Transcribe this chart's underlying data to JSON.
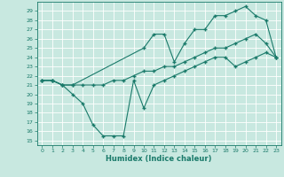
{
  "xlabel": "Humidex (Indice chaleur)",
  "bg_color": "#c8e8e0",
  "grid_color": "#ffffff",
  "line_color": "#1a7a6a",
  "xlim": [
    -0.5,
    23.5
  ],
  "ylim": [
    14.5,
    30.0
  ],
  "xticks": [
    0,
    1,
    2,
    3,
    4,
    5,
    6,
    7,
    8,
    9,
    10,
    11,
    12,
    13,
    14,
    15,
    16,
    17,
    18,
    19,
    20,
    21,
    22,
    23
  ],
  "yticks": [
    15,
    16,
    17,
    18,
    19,
    20,
    21,
    22,
    23,
    24,
    25,
    26,
    27,
    28,
    29
  ],
  "line_min_x": [
    0,
    1,
    2,
    3,
    4,
    5,
    6,
    7,
    8,
    9,
    10,
    11,
    12,
    13,
    14,
    15,
    16,
    17,
    18,
    19,
    20,
    21,
    22,
    23
  ],
  "line_min_y": [
    21.5,
    21.5,
    21.0,
    20.0,
    19.0,
    16.7,
    15.5,
    15.5,
    15.5,
    21.5,
    18.5,
    21.0,
    21.5,
    22.0,
    22.5,
    23.0,
    23.5,
    24.0,
    24.0,
    23.0,
    23.5,
    24.0,
    24.5,
    24.0
  ],
  "line_max_x": [
    0,
    1,
    2,
    3,
    10,
    11,
    12,
    13,
    14,
    15,
    16,
    17,
    18,
    19,
    20,
    21,
    22,
    23
  ],
  "line_max_y": [
    21.5,
    21.5,
    21.0,
    21.0,
    25.0,
    26.5,
    26.5,
    23.5,
    25.5,
    27.0,
    27.0,
    28.5,
    28.5,
    29.0,
    29.5,
    28.5,
    28.0,
    24.0
  ],
  "line_avg_x": [
    0,
    1,
    2,
    3,
    4,
    5,
    6,
    7,
    8,
    9,
    10,
    11,
    12,
    13,
    14,
    15,
    16,
    17,
    18,
    19,
    20,
    21,
    22,
    23
  ],
  "line_avg_y": [
    21.5,
    21.5,
    21.0,
    21.0,
    21.0,
    21.0,
    21.0,
    21.5,
    21.5,
    22.0,
    22.5,
    22.5,
    23.0,
    23.0,
    23.5,
    24.0,
    24.5,
    25.0,
    25.0,
    25.5,
    26.0,
    26.5,
    25.5,
    24.0
  ],
  "xlabel_fontsize": 6.0,
  "tick_fontsize": 4.5
}
